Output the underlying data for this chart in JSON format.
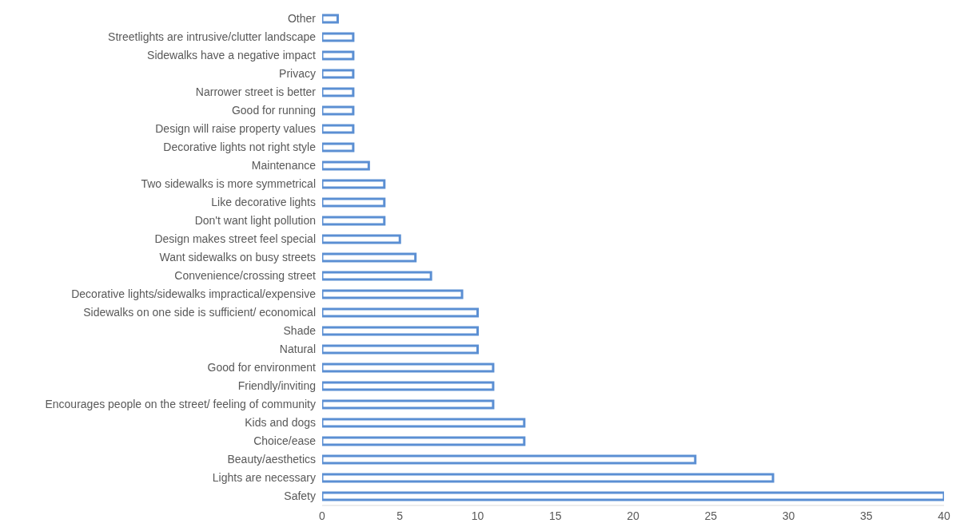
{
  "chart_data": {
    "type": "bar",
    "orientation": "horizontal",
    "categories": [
      "Other",
      "Streetlights are intrusive/clutter landscape",
      "Sidewalks have a negative impact",
      "Privacy",
      "Narrower street is better",
      "Good for running",
      "Design will raise property values",
      "Decorative lights not right style",
      "Maintenance",
      "Two sidewalks is more symmetrical",
      "Like decorative lights",
      "Don't want light pollution",
      "Design makes street feel special",
      "Want sidewalks on busy streets",
      "Convenience/crossing street",
      "Decorative lights/sidewalks impractical/expensive",
      "Sidewalks on one side is sufficient/ economical",
      "Shade",
      "Natural",
      "Good for environment",
      "Friendly/inviting",
      "Encourages people on the street/ feeling of community",
      "Kids and dogs",
      "Choice/ease",
      "Beauty/aesthetics",
      "Lights are necessary",
      "Safety"
    ],
    "values": [
      1,
      2,
      2,
      2,
      2,
      2,
      2,
      2,
      3,
      4,
      4,
      4,
      5,
      6,
      7,
      9,
      10,
      10,
      10,
      11,
      11,
      11,
      13,
      13,
      24,
      29,
      40
    ],
    "color": "#5b8fd3",
    "xlim": [
      0,
      40
    ],
    "xticks": [
      0,
      5,
      10,
      15,
      20,
      25,
      30,
      35,
      40
    ],
    "grid": false,
    "legend": false
  }
}
